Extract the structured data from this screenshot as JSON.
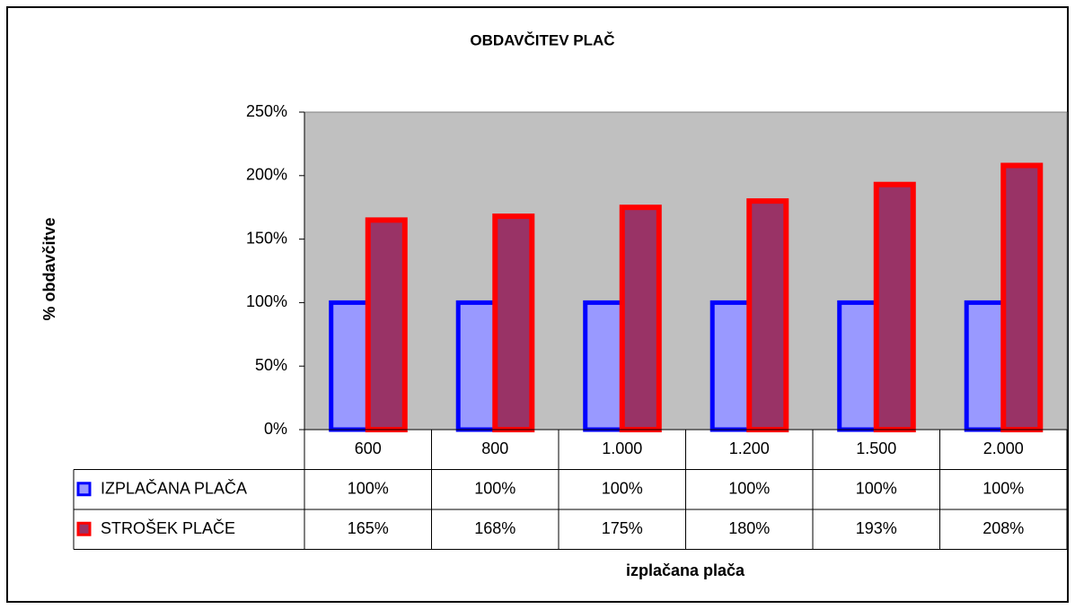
{
  "chart_data": {
    "type": "bar",
    "title": "OBDAVČITEV PLAČ",
    "y_label": "% obdavčitve",
    "x_label": "izplačana plača",
    "categories": [
      "600",
      "800",
      "1.000",
      "1.200",
      "1.500",
      "2.000"
    ],
    "series": [
      {
        "name": "IZPLAČANA PLAČA",
        "color": "#9999ff",
        "border_color": "#0000ff",
        "values": [
          100,
          100,
          100,
          100,
          100,
          100
        ],
        "value_labels": [
          "100%",
          "100%",
          "100%",
          "100%",
          "100%",
          "100%"
        ]
      },
      {
        "name": "STROŠEK PLAČE",
        "color": "#993366",
        "border_color": "#ff0000",
        "values": [
          165,
          168,
          175,
          180,
          193,
          208
        ],
        "value_labels": [
          "165%",
          "168%",
          "175%",
          "180%",
          "193%",
          "208%"
        ]
      }
    ],
    "ylim": [
      0,
      250
    ],
    "yticks": [
      {
        "value": 0,
        "label": "0%"
      },
      {
        "value": 50,
        "label": "50%"
      },
      {
        "value": 100,
        "label": "100%"
      },
      {
        "value": 150,
        "label": "150%"
      },
      {
        "value": 200,
        "label": "200%"
      },
      {
        "value": 250,
        "label": "250%"
      }
    ],
    "plot_background": "#c0c0c0"
  }
}
